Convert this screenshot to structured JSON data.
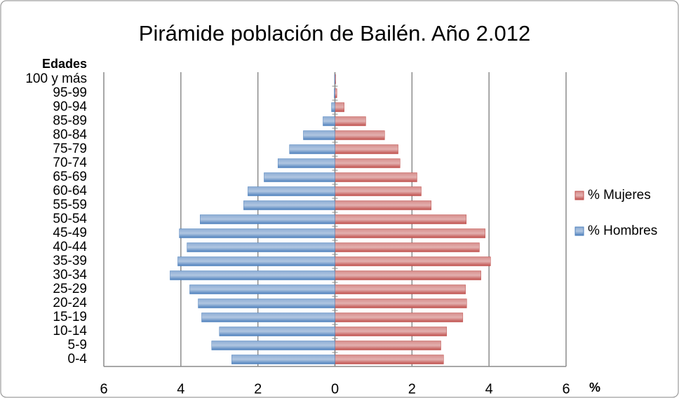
{
  "chart_data": {
    "type": "bar",
    "orientation": "horizontal",
    "stacked": true,
    "title": "Pirámide población de Bailén. Año 2.012",
    "y_label": "Edades",
    "x_label": "%",
    "categories": [
      "0-4",
      "5-9",
      "10-14",
      "15-19",
      "20-24",
      "25-29",
      "30-34",
      "35-39",
      "40-44",
      "45-49",
      "50-54",
      "55-59",
      "60-64",
      "65-69",
      "70-74",
      "75-79",
      "80-84",
      "85-89",
      "90-94",
      "95-99",
      "100 y más"
    ],
    "series": [
      {
        "name": "% Mujeres",
        "color": "#c0504d",
        "values": [
          2.82,
          2.75,
          2.9,
          3.32,
          3.42,
          3.39,
          3.79,
          4.04,
          3.75,
          3.9,
          3.41,
          2.5,
          2.24,
          2.13,
          1.69,
          1.64,
          1.29,
          0.8,
          0.24,
          0.05,
          0.02
        ]
      },
      {
        "name": "% Hombres",
        "color": "#4f81bd",
        "values": [
          -2.68,
          -3.2,
          -3.0,
          -3.46,
          -3.55,
          -3.77,
          -4.28,
          -4.08,
          -3.84,
          -4.04,
          -3.5,
          -2.37,
          -2.26,
          -1.84,
          -1.48,
          -1.18,
          -0.82,
          -0.31,
          -0.09,
          -0.02,
          -0.01
        ]
      }
    ],
    "xlim": [
      -6,
      6
    ],
    "xticks": [
      {
        "value": -6,
        "label": "6"
      },
      {
        "value": -4,
        "label": "4"
      },
      {
        "value": -2,
        "label": "2"
      },
      0,
      2,
      4,
      6
    ],
    "grid": true,
    "legend": "right"
  }
}
